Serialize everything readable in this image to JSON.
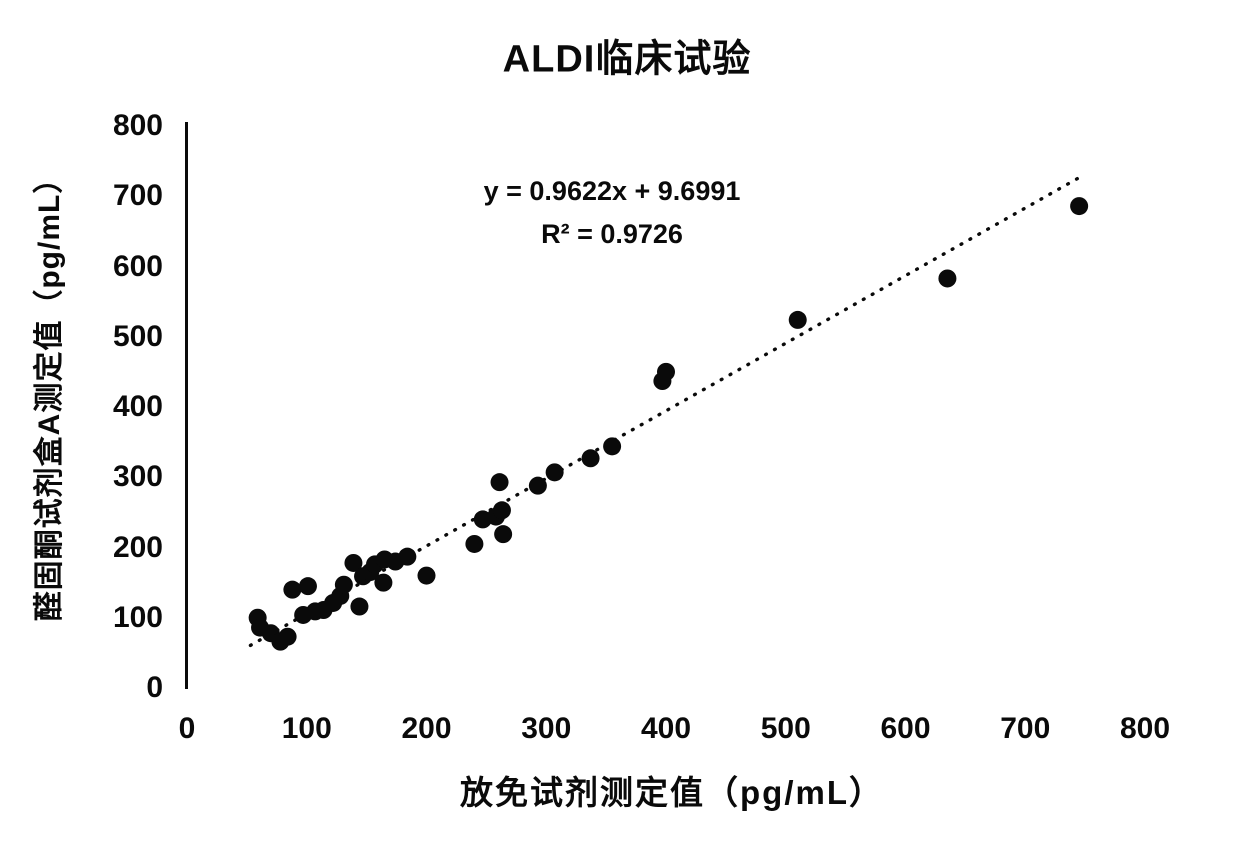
{
  "figure": {
    "background_color": "#ffffff",
    "ink_color": "#0a0a0a"
  },
  "chart_data": {
    "type": "scatter",
    "title": "ALDI临床试验",
    "xlabel": "放免试剂测定值（pg/mL）",
    "ylabel": "醛固酮试剂盒A测定值（pg/mL）",
    "xlim": [
      0,
      800
    ],
    "ylim": [
      0,
      800
    ],
    "xticks": [
      0,
      100,
      200,
      300,
      400,
      500,
      600,
      700,
      800
    ],
    "yticks": [
      0,
      100,
      200,
      300,
      400,
      500,
      600,
      700,
      800
    ],
    "grid": false,
    "legend": false,
    "marker": {
      "shape": "circle",
      "color": "#0a0a0a",
      "radius_px": 9
    },
    "points": [
      [
        59,
        100
      ],
      [
        61,
        86
      ],
      [
        70,
        78
      ],
      [
        78,
        66
      ],
      [
        84,
        73
      ],
      [
        88,
        140
      ],
      [
        97,
        104
      ],
      [
        101,
        145
      ],
      [
        107,
        109
      ],
      [
        114,
        111
      ],
      [
        122,
        121
      ],
      [
        128,
        131
      ],
      [
        131,
        147
      ],
      [
        139,
        178
      ],
      [
        144,
        116
      ],
      [
        147,
        159
      ],
      [
        153,
        165
      ],
      [
        157,
        176
      ],
      [
        164,
        150
      ],
      [
        165,
        183
      ],
      [
        174,
        180
      ],
      [
        184,
        187
      ],
      [
        200,
        160
      ],
      [
        240,
        205
      ],
      [
        247,
        240
      ],
      [
        258,
        244
      ],
      [
        263,
        253
      ],
      [
        264,
        219
      ],
      [
        261,
        293
      ],
      [
        293,
        288
      ],
      [
        307,
        307
      ],
      [
        337,
        327
      ],
      [
        355,
        344
      ],
      [
        397,
        437
      ],
      [
        400,
        450
      ],
      [
        510,
        524
      ],
      [
        635,
        583
      ],
      [
        745,
        686
      ]
    ],
    "trendline": {
      "type": "linear",
      "slope": 0.9622,
      "intercept": 9.6991,
      "r_squared": 0.9726,
      "equation_label": "y = 0.9622x + 9.6991",
      "r2_label": "R² = 0.9726",
      "style": "dotted",
      "color": "#0a0a0a",
      "x_start": 53,
      "x_end": 750
    },
    "axes": {
      "y_axis_line_visible": true,
      "x_axis_line_visible": false
    }
  }
}
